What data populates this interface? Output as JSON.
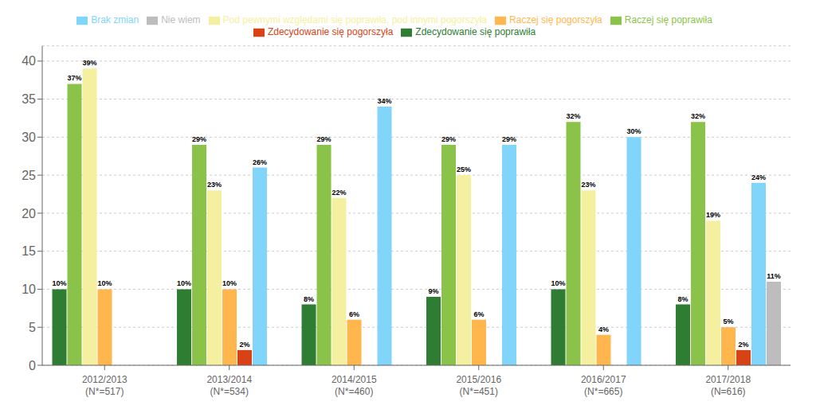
{
  "chart_data": {
    "type": "bar",
    "categories": [
      "2012/2013\n(N*=517)",
      "2013/2014\n(N*=534)",
      "2014/2015\n(N*=460)",
      "2015/2016\n(N*=451)",
      "2016/2017\n(N*=665)",
      "2017/2018\n(N=616)"
    ],
    "series": [
      {
        "name": "Zdecydowanie się poprawiła",
        "color": "#2e7d32",
        "values": [
          10,
          10,
          8,
          9,
          10,
          8
        ],
        "value_labels": [
          "10%",
          "10%",
          "8%",
          "9%",
          "10%",
          "8%"
        ]
      },
      {
        "name": "Raczej się poprawiła",
        "color": "#8bc34a",
        "values": [
          37,
          29,
          29,
          29,
          32,
          32
        ],
        "value_labels": [
          "37%",
          "29%",
          "29%",
          "29%",
          "32%",
          "32%"
        ]
      },
      {
        "name": "Pod pewnymi względami się poprawiła, pod innymi pogorszyła",
        "color": "#f5f0a0",
        "values": [
          39,
          23,
          22,
          25,
          23,
          19
        ],
        "value_labels": [
          "39%",
          "23%",
          "22%",
          "25%",
          "23%",
          "19%"
        ]
      },
      {
        "name": "Raczej się pogorszyła",
        "color": "#ffb74d",
        "values": [
          10,
          10,
          6,
          6,
          4,
          5
        ],
        "value_labels": [
          "10%",
          "10%",
          "6%",
          "6%",
          "4%",
          "5%"
        ]
      },
      {
        "name": "Zdecydowanie się pogorszyła",
        "color": "#d84315",
        "values": [
          0,
          2,
          0,
          0,
          0,
          2
        ],
        "value_labels": [
          null,
          "2%",
          null,
          null,
          null,
          "2%"
        ]
      },
      {
        "name": "Brak zmian",
        "color": "#81d4fa",
        "values": [
          0,
          26,
          34,
          29,
          30,
          24
        ],
        "value_labels": [
          null,
          "26%",
          "34%",
          "29%",
          "30%",
          "24%"
        ]
      },
      {
        "name": "Nie wiem",
        "color": "#bdbdbd",
        "values": [
          0,
          0,
          0,
          0,
          0,
          11
        ],
        "value_labels": [
          null,
          null,
          null,
          null,
          null,
          "11%"
        ]
      }
    ],
    "ylim": [
      0,
      42
    ],
    "yticks": [
      0,
      5,
      10,
      15,
      20,
      25,
      30,
      35,
      40
    ],
    "grid": true,
    "legend": "top",
    "data_labels": true
  }
}
